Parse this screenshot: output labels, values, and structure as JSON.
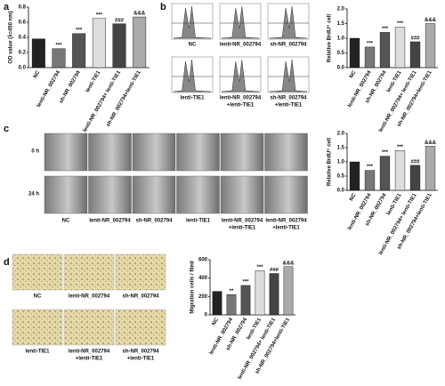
{
  "chart_data": [
    {
      "type": "bar",
      "ylabel": "OD value (λ=450 nm)",
      "categories": [
        "NC",
        "lenti-NR_002794",
        "sh-NR_002794",
        "lenti-TIE1",
        "lenti-NR_002794+ lenti-TIE1",
        "sh-NR_002794+lenti-TIE1"
      ],
      "values": [
        0.38,
        0.25,
        0.45,
        0.65,
        0.58,
        0.67
      ],
      "annotations": [
        null,
        "***",
        "***",
        "***",
        "###",
        "&&&"
      ],
      "colors": [
        "#222222",
        "#777777",
        "#555555",
        "#dddddd",
        "#444444",
        "#aaaaaa"
      ],
      "ylim": [
        0,
        0.8
      ],
      "yticks": [
        {
          "value": 0,
          "label": "0.0"
        },
        0.2,
        0.4,
        0.6,
        0.8
      ]
    },
    {
      "type": "bar",
      "ylabel": "Relative BrdU⁺ cell",
      "categories": [
        "NC",
        "lenti-NR_002794",
        "sh-NR_002794",
        "lenti-TIE1",
        "lenti-NR_002794+ lenti-TIE1",
        "sh-NR_002794+lenti-TIE1"
      ],
      "values": [
        1.0,
        0.7,
        1.2,
        1.38,
        0.88,
        1.5
      ],
      "annotations": [
        null,
        "***",
        "***",
        "***",
        "###",
        "&&&"
      ],
      "colors": [
        "#222222",
        "#777777",
        "#555555",
        "#dddddd",
        "#444444",
        "#aaaaaa"
      ],
      "ylim": [
        0,
        2
      ],
      "yticks": [
        {
          "value": 0,
          "label": "0.0"
        },
        0.5,
        {
          "value": 1,
          "label": "1.0"
        },
        1.5,
        {
          "value": 2,
          "label": "2.0"
        }
      ]
    },
    {
      "type": "bar",
      "ylabel": "Relative BrdU⁺ cell",
      "categories": [
        "NC",
        "lenti-NR_002794",
        "sh-NR_002794",
        "lenti-TIE1",
        "lenti-NR_002794+ lenti-TIE1",
        "sh-NR_002794+lenti-TIE1"
      ],
      "values": [
        1.0,
        0.7,
        1.2,
        1.4,
        0.88,
        1.55
      ],
      "annotations": [
        null,
        "***",
        "***",
        "***",
        "###",
        "&&&"
      ],
      "colors": [
        "#222222",
        "#777777",
        "#555555",
        "#dddddd",
        "#444444",
        "#aaaaaa"
      ],
      "ylim": [
        0,
        2
      ],
      "yticks": [
        {
          "value": 0,
          "label": "0.0"
        },
        0.5,
        {
          "value": 1,
          "label": "1.0"
        },
        1.5,
        {
          "value": 2,
          "label": "2.0"
        }
      ]
    },
    {
      "type": "bar",
      "ylabel": "Migration cells / filed",
      "categories": [
        "NC",
        "lenti-NR_002794",
        "sh-NR_002794",
        "lenti-TIE1",
        "lenti-NR_002794+ lenti-TIE1",
        "sh-NR_002794+lenti-TIE1"
      ],
      "values": [
        255,
        220,
        320,
        480,
        450,
        525
      ],
      "annotations": [
        null,
        "**",
        "***",
        "***",
        "###",
        "&&&"
      ],
      "colors": [
        "#222222",
        "#777777",
        "#555555",
        "#dddddd",
        "#444444",
        "#aaaaaa"
      ],
      "ylim": [
        0,
        600
      ],
      "yticks": [
        0,
        200,
        400,
        600
      ]
    }
  ],
  "figure": {
    "panel_labels": [
      "a",
      "b",
      "c",
      "d"
    ],
    "b_captions": [
      [
        "NC"
      ],
      [
        "lenti-NR_002794"
      ],
      [
        "sh-NR_002794"
      ],
      [
        "lenti-TIE1"
      ],
      [
        "lenti-NR_002794",
        "+lenti-TIE1"
      ],
      [
        "sh-NR_002794",
        "+lenti-TIE1"
      ]
    ],
    "c_rows": [
      "0 h",
      "24 h"
    ],
    "c_captions": [
      [
        "NC"
      ],
      [
        "lenti-NR_002794"
      ],
      [
        "sh-NR_002794"
      ],
      [
        "lenti-TIE1"
      ],
      [
        "lenti-NR_002794",
        "+lenti-TIE1"
      ],
      [
        "lenti-NR_002794",
        "+lenti-TIE1"
      ]
    ],
    "d_captions": [
      [
        "NC"
      ],
      [
        "lenti-NR_002794"
      ],
      [
        "sh-NR_002794"
      ],
      [
        "lenti-TIE1"
      ],
      [
        "lenti-NR_002794",
        "+lenti-TIE1"
      ],
      [
        "sh-NR_002794",
        "+lenti-TIE1"
      ]
    ]
  }
}
